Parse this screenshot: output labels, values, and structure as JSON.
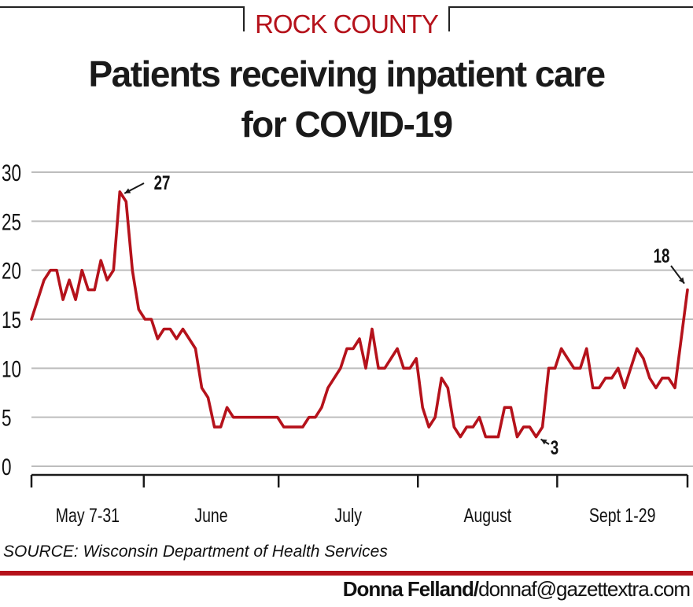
{
  "kicker": "ROCK COUNTY",
  "title_line1": "Patients receiving inpatient care",
  "title_line2": "for COVID-19",
  "source": "SOURCE: Wisconsin Department of Health Services",
  "credit_name": "Donna Felland/",
  "credit_email": "donnaf@gazettextra.com",
  "colors": {
    "accent": "#b5121b",
    "grid": "#bdbdbd",
    "axis": "#1a1a1a",
    "text": "#111111"
  },
  "chart_data": {
    "type": "line",
    "title": "Patients receiving inpatient care for COVID-19",
    "xlabel": "",
    "ylabel": "",
    "ylim": [
      0,
      30
    ],
    "yticks": [
      0,
      5,
      10,
      15,
      20,
      25,
      30
    ],
    "grid": true,
    "month_labels": [
      "May 7-31",
      "June",
      "July",
      "August",
      "Sept 1-29"
    ],
    "month_boundaries_day_index": [
      0,
      25,
      55,
      86,
      117,
      146
    ],
    "series": [
      {
        "values": [
          15,
          17,
          19,
          20,
          20,
          17,
          19,
          17,
          20,
          18,
          18,
          21,
          19,
          20,
          28,
          27,
          20,
          16,
          15,
          15,
          13,
          14,
          14,
          13,
          14,
          13,
          12,
          8,
          7,
          4,
          4,
          6,
          5,
          5,
          5,
          5,
          5,
          5,
          5,
          5,
          4,
          4,
          4,
          4,
          5,
          5,
          6,
          8,
          9,
          10,
          12,
          12,
          13,
          10,
          14,
          10,
          10,
          11,
          12,
          10,
          10,
          11,
          6,
          4,
          5,
          9,
          8,
          4,
          3,
          4,
          4,
          5,
          3,
          3,
          3,
          6,
          6,
          3,
          4,
          4,
          3,
          4,
          10,
          10,
          12,
          11,
          10,
          10,
          12,
          8,
          8,
          9,
          9,
          10,
          8,
          10,
          12,
          11,
          9,
          8,
          9,
          9,
          8,
          13,
          18
        ]
      }
    ],
    "annotations": [
      {
        "label": "27",
        "value": 27
      },
      {
        "label": "3",
        "value": 3
      },
      {
        "label": "18",
        "value": 18
      }
    ]
  }
}
